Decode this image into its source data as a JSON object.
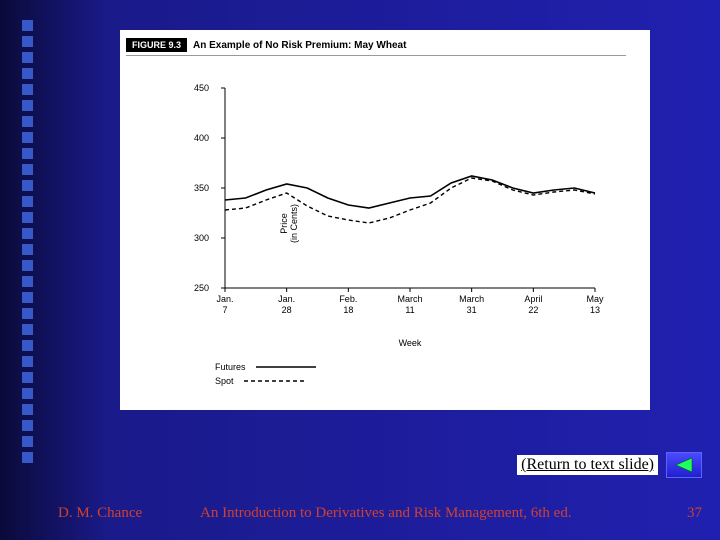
{
  "slide": {
    "dot_count": 28,
    "dot_color": "#3858c8",
    "background_gradient": [
      "#0a0a3a",
      "#1a1a8a",
      "#2020b0"
    ]
  },
  "figure": {
    "badge": "FIGURE 9.3",
    "title": "An Example of No Risk Premium: May Wheat",
    "background_color": "#ffffff"
  },
  "chart": {
    "type": "line",
    "ylabel": "Price\n(in Cents)",
    "xlabel": "Week",
    "ylim": [
      250,
      450
    ],
    "ytick_step": 50,
    "yticks": [
      250,
      300,
      350,
      400,
      450
    ],
    "xticks": [
      {
        "top": "Jan.",
        "bottom": "7"
      },
      {
        "top": "Jan.",
        "bottom": "28"
      },
      {
        "top": "Feb.",
        "bottom": "18"
      },
      {
        "top": "March",
        "bottom": "11"
      },
      {
        "top": "March",
        "bottom": "31"
      },
      {
        "top": "April",
        "bottom": "22"
      },
      {
        "top": "May",
        "bottom": "13"
      }
    ],
    "axis_color": "#000000",
    "tick_fontsize": 9,
    "label_fontsize": 9,
    "series": [
      {
        "name": "Futures",
        "style": "solid",
        "color": "#000000",
        "line_width": 1.6,
        "points": [
          [
            0,
            338
          ],
          [
            1,
            340
          ],
          [
            2,
            348
          ],
          [
            3,
            354
          ],
          [
            4,
            350
          ],
          [
            5,
            340
          ],
          [
            6,
            333
          ],
          [
            7,
            330
          ],
          [
            8,
            335
          ],
          [
            9,
            340
          ],
          [
            10,
            342
          ],
          [
            11,
            355
          ],
          [
            12,
            362
          ],
          [
            13,
            358
          ],
          [
            14,
            350
          ],
          [
            15,
            345
          ],
          [
            16,
            348
          ],
          [
            17,
            350
          ],
          [
            18,
            345
          ]
        ]
      },
      {
        "name": "Spot",
        "style": "dashed",
        "color": "#000000",
        "line_width": 1.4,
        "dash": "4,3",
        "points": [
          [
            0,
            328
          ],
          [
            1,
            330
          ],
          [
            2,
            338
          ],
          [
            3,
            345
          ],
          [
            4,
            332
          ],
          [
            5,
            322
          ],
          [
            6,
            318
          ],
          [
            7,
            315
          ],
          [
            8,
            320
          ],
          [
            9,
            328
          ],
          [
            10,
            335
          ],
          [
            11,
            350
          ],
          [
            12,
            360
          ],
          [
            13,
            357
          ],
          [
            14,
            348
          ],
          [
            15,
            343
          ],
          [
            16,
            346
          ],
          [
            17,
            348
          ],
          [
            18,
            344
          ]
        ]
      }
    ],
    "legend": {
      "futures": "Futures",
      "spot": "Spot"
    }
  },
  "nav": {
    "return_text": "(Return to text slide)"
  },
  "footer": {
    "author": "D. M. Chance",
    "title": "An Introduction to Derivatives and Risk Management, 6th ed.",
    "page": "37",
    "text_color": "#d04030"
  }
}
